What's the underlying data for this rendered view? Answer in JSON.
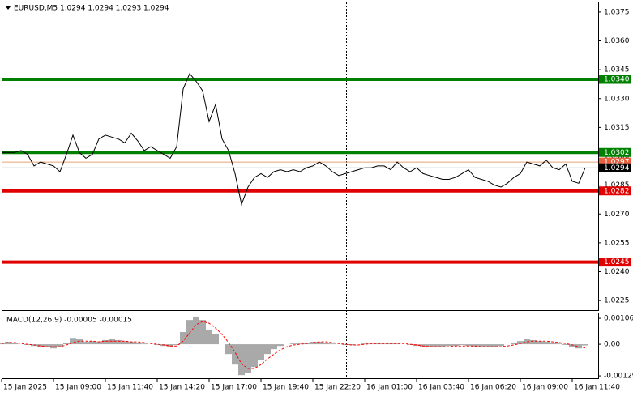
{
  "chart_data": [
    {
      "type": "line",
      "title": "EURUSD,M5  1.0294 1.0294 1.0293 1.0294",
      "color": "#000000",
      "xlim": [
        0,
        92
      ],
      "ylim": [
        1.022,
        1.038
      ],
      "xticks": [
        {
          "value": 0,
          "label": "15 Jan 2025"
        },
        {
          "value": 8,
          "label": "15 Jan 09:00"
        },
        {
          "value": 16,
          "label": "15 Jan 11:40"
        },
        {
          "value": 24,
          "label": "15 Jan 14:20"
        },
        {
          "value": 32,
          "label": "15 Jan 17:00"
        },
        {
          "value": 40,
          "label": "15 Jan 19:40"
        },
        {
          "value": 48,
          "label": "15 Jan 22:20"
        },
        {
          "value": 56,
          "label": "16 Jan 01:00"
        },
        {
          "value": 64,
          "label": "16 Jan 03:40"
        },
        {
          "value": 72,
          "label": "16 Jan 06:20"
        },
        {
          "value": 80,
          "label": "16 Jan 09:00"
        },
        {
          "value": 88,
          "label": "16 Jan 11:40"
        }
      ],
      "yticks": [
        1.0375,
        {
          "value": 1.036,
          "label": "1.0360"
        },
        1.0345,
        {
          "value": 1.033,
          "label": "1.0330"
        },
        1.0315,
        {
          "value": 1.03,
          "label": "1.0300"
        },
        1.0285,
        {
          "value": 1.027,
          "label": "1.0270"
        },
        1.0255,
        {
          "value": 1.024,
          "label": "1.0240"
        },
        1.0225
      ],
      "values": [
        1.0302,
        1.0302,
        1.0302,
        1.0303,
        1.0301,
        1.0295,
        1.0297,
        1.0296,
        1.0295,
        1.0292,
        1.0301,
        1.0311,
        1.0302,
        1.0299,
        1.0301,
        1.0309,
        1.0311,
        1.031,
        1.0309,
        1.0307,
        1.0312,
        1.0308,
        1.0303,
        1.0305,
        1.0303,
        1.0301,
        1.0299,
        1.0305,
        1.0335,
        1.0343,
        1.0339,
        1.0334,
        1.0318,
        1.0327,
        1.0309,
        1.0303,
        1.0291,
        1.0275,
        1.0284,
        1.0289,
        1.0291,
        1.0289,
        1.0292,
        1.0293,
        1.0292,
        1.0293,
        1.0292,
        1.0294,
        1.0295,
        1.0297,
        1.0295,
        1.0292,
        1.029,
        1.0291,
        1.0292,
        1.0293,
        1.0294,
        1.0294,
        1.0295,
        1.0295,
        1.0293,
        1.0297,
        1.0294,
        1.0292,
        1.0294,
        1.0291,
        1.029,
        1.0289,
        1.0288,
        1.0288,
        1.0289,
        1.0291,
        1.0293,
        1.0289,
        1.0288,
        1.0287,
        1.0285,
        1.0284,
        1.0286,
        1.0289,
        1.0291,
        1.0297,
        1.0296,
        1.0295,
        1.0298,
        1.0294,
        1.0293,
        1.0296,
        1.0287,
        1.0286,
        1.0294
      ],
      "levels": [
        {
          "value": 1.034,
          "label": "1.0340",
          "color": "#008000",
          "label_fill": "#008000"
        },
        {
          "value": 1.0302,
          "label": "1.0302",
          "color": "#008000",
          "label_fill": "#008000"
        },
        {
          "value": 1.0297,
          "label": "1.0297",
          "color": "#e8a070",
          "label_fill": "#e86040"
        },
        {
          "value": 1.0294,
          "label": "1.0294",
          "color": "#c0c0c0",
          "label_fill": "#000000"
        },
        {
          "value": 1.0282,
          "label": "1.0282",
          "color": "#e00000",
          "label_fill": "#e00000"
        },
        {
          "value": 1.0245,
          "label": "1.0245",
          "color": "#e00000",
          "label_fill": "#e00000"
        }
      ]
    },
    {
      "type": "macd",
      "title": "MACD(12,26,9) -0.00005 -0.00015",
      "color": "#a9a9a9",
      "xlim": [
        0,
        92
      ],
      "ylim": [
        -0.00142,
        0.00126
      ],
      "yticks": [
        0.00106,
        {
          "value": 0,
          "label": "0.00"
        },
        -0.00129
      ],
      "values": [
        7e-05,
        0.0001,
        7e-05,
        0,
        -3e-05,
        -7e-05,
        -0.0001,
        -0.00013,
        -0.00017,
        -0.0001,
        7e-05,
        0.00026,
        0.0002,
        0.0001,
        0.00013,
        0.0001,
        0.00017,
        0.0002,
        0.00017,
        0.00013,
        0.0001,
        7e-05,
        3e-05,
        0,
        -3e-05,
        -7e-05,
        -0.0001,
        -3e-05,
        0.0005,
        0.00099,
        0.00113,
        0.00099,
        0.0006,
        0.0004,
        0,
        -0.0004,
        -0.00083,
        -0.00126,
        -0.00116,
        -0.00093,
        -0.00066,
        -0.0004,
        -0.0002,
        -7e-05,
        0,
        3e-05,
        3e-05,
        7e-05,
        0.0001,
        0.0001,
        7e-05,
        3e-05,
        0,
        -3e-05,
        -3e-05,
        0,
        3e-05,
        3e-05,
        7e-05,
        3e-05,
        7e-05,
        3e-05,
        0,
        -3e-05,
        -7e-05,
        -0.0001,
        -0.00013,
        -0.00013,
        -0.0001,
        -7e-05,
        -7e-05,
        -3e-05,
        -7e-05,
        -0.0001,
        -0.00013,
        -0.00013,
        -0.0001,
        -7e-05,
        0,
        7e-05,
        0.00013,
        0.0002,
        0.00017,
        0.00013,
        0.0001,
        7e-05,
        3e-05,
        -3e-05,
        -0.00013,
        -0.00017,
        -5e-05
      ],
      "signal": {
        "color": "#ff0000",
        "values": [
          3e-05,
          7e-05,
          7e-05,
          3e-05,
          0,
          -3e-05,
          -7e-05,
          -0.0001,
          -0.0001,
          -0.0001,
          -3e-05,
          7e-05,
          0.00013,
          0.00013,
          0.00013,
          0.0001,
          0.00013,
          0.00013,
          0.00013,
          0.00013,
          0.0001,
          0.0001,
          7e-05,
          3e-05,
          0,
          -3e-05,
          -7e-05,
          -7e-05,
          0.00013,
          0.00046,
          0.0008,
          0.00093,
          0.00086,
          0.00066,
          0.0004,
          7e-05,
          -0.00033,
          -0.0008,
          -0.00099,
          -0.00099,
          -0.00083,
          -0.0006,
          -0.0004,
          -0.00023,
          -0.0001,
          -3e-05,
          0,
          3e-05,
          7e-05,
          0.0001,
          0.0001,
          7e-05,
          3e-05,
          0,
          -3e-05,
          -3e-05,
          0,
          3e-05,
          3e-05,
          3e-05,
          3e-05,
          3e-05,
          3e-05,
          0,
          -3e-05,
          -7e-05,
          -0.0001,
          -0.0001,
          -0.0001,
          -0.0001,
          -7e-05,
          -7e-05,
          -7e-05,
          -7e-05,
          -0.0001,
          -0.0001,
          -0.0001,
          -0.0001,
          -7e-05,
          -3e-05,
          3e-05,
          0.0001,
          0.00013,
          0.00013,
          0.00013,
          0.0001,
          7e-05,
          3e-05,
          -3e-05,
          -0.0001,
          -0.00015
        ]
      }
    }
  ]
}
